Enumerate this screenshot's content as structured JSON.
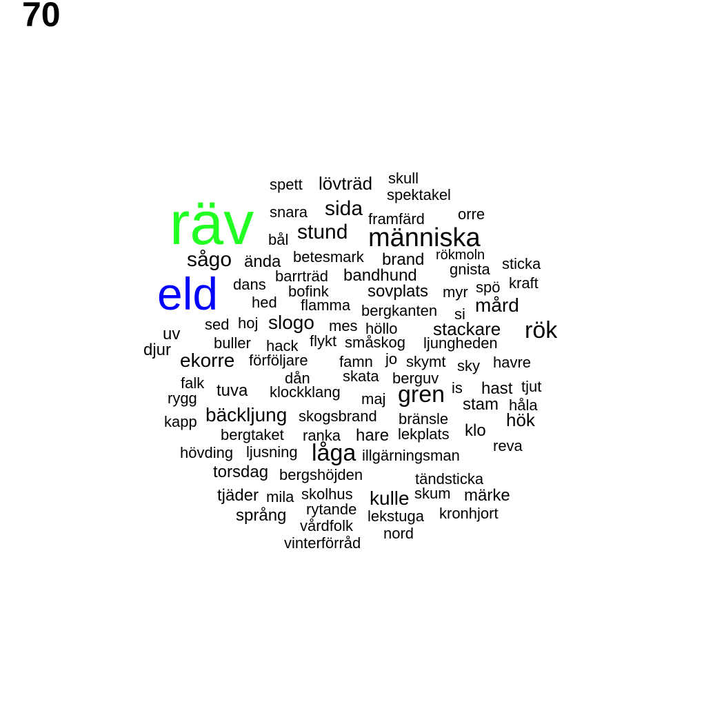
{
  "page_number": "70",
  "colors": {
    "default": "#000000",
    "rav": "#22ff22",
    "eld": "#0000ff"
  },
  "words": [
    {
      "text": "räv",
      "size": "xl",
      "color": "rav"
    },
    {
      "text": "eld",
      "size": "xl",
      "color": "eld"
    },
    {
      "text": "människa",
      "size": "l"
    },
    {
      "text": "rök",
      "size": "l"
    },
    {
      "text": "gren",
      "size": "l"
    },
    {
      "text": "låga",
      "size": "l"
    },
    {
      "text": "sågo",
      "size": "m"
    },
    {
      "text": "stund",
      "size": "m"
    },
    {
      "text": "sida",
      "size": "m"
    },
    {
      "text": "ekorre",
      "size": "m"
    },
    {
      "text": "bäckljung",
      "size": "m"
    },
    {
      "text": "slogo",
      "size": "m"
    },
    {
      "text": "mård",
      "size": "m"
    },
    {
      "text": "kulle",
      "size": "m"
    },
    {
      "text": "lövträd",
      "size": "s"
    },
    {
      "text": "spett",
      "size": "s"
    },
    {
      "text": "skull",
      "size": "s"
    },
    {
      "text": "spektakel",
      "size": "s"
    },
    {
      "text": "snara",
      "size": "s"
    },
    {
      "text": "framfärd",
      "size": "s"
    },
    {
      "text": "orre",
      "size": "s"
    },
    {
      "text": "bål",
      "size": "s"
    },
    {
      "text": "ända",
      "size": "s"
    },
    {
      "text": "betesmark",
      "size": "s"
    },
    {
      "text": "brand",
      "size": "s"
    },
    {
      "text": "rökmoln",
      "size": "s"
    },
    {
      "text": "sticka",
      "size": "s"
    },
    {
      "text": "gnista",
      "size": "s"
    },
    {
      "text": "barrträd",
      "size": "s"
    },
    {
      "text": "bandhund",
      "size": "s"
    },
    {
      "text": "dans",
      "size": "s"
    },
    {
      "text": "bofink",
      "size": "s"
    },
    {
      "text": "sovplats",
      "size": "s"
    },
    {
      "text": "myr",
      "size": "s"
    },
    {
      "text": "spö",
      "size": "s"
    },
    {
      "text": "kraft",
      "size": "s"
    },
    {
      "text": "hed",
      "size": "s"
    },
    {
      "text": "flamma",
      "size": "s"
    },
    {
      "text": "bergkanten",
      "size": "s"
    },
    {
      "text": "si",
      "size": "s"
    },
    {
      "text": "sed",
      "size": "s"
    },
    {
      "text": "hoj",
      "size": "s"
    },
    {
      "text": "mes",
      "size": "s"
    },
    {
      "text": "höllo",
      "size": "s"
    },
    {
      "text": "stackare",
      "size": "s"
    },
    {
      "text": "uv",
      "size": "s"
    },
    {
      "text": "buller",
      "size": "s"
    },
    {
      "text": "hack",
      "size": "s"
    },
    {
      "text": "flykt",
      "size": "s"
    },
    {
      "text": "småskog",
      "size": "s"
    },
    {
      "text": "ljungheden",
      "size": "s"
    },
    {
      "text": "djur",
      "size": "s"
    },
    {
      "text": "förföljare",
      "size": "s"
    },
    {
      "text": "famn",
      "size": "s"
    },
    {
      "text": "jo",
      "size": "s"
    },
    {
      "text": "skymt",
      "size": "s"
    },
    {
      "text": "sky",
      "size": "s"
    },
    {
      "text": "havre",
      "size": "s"
    },
    {
      "text": "dån",
      "size": "s"
    },
    {
      "text": "skata",
      "size": "s"
    },
    {
      "text": "berguv",
      "size": "s"
    },
    {
      "text": "falk",
      "size": "s"
    },
    {
      "text": "tuva",
      "size": "s"
    },
    {
      "text": "klockklang",
      "size": "s"
    },
    {
      "text": "maj",
      "size": "s"
    },
    {
      "text": "is",
      "size": "s"
    },
    {
      "text": "hast",
      "size": "s"
    },
    {
      "text": "tjut",
      "size": "s"
    },
    {
      "text": "rygg",
      "size": "s"
    },
    {
      "text": "stam",
      "size": "s"
    },
    {
      "text": "håla",
      "size": "s"
    },
    {
      "text": "skogsbrand",
      "size": "s"
    },
    {
      "text": "bränsle",
      "size": "s"
    },
    {
      "text": "hök",
      "size": "s"
    },
    {
      "text": "kapp",
      "size": "s"
    },
    {
      "text": "bergtaket",
      "size": "s"
    },
    {
      "text": "ranka",
      "size": "s"
    },
    {
      "text": "hare",
      "size": "s"
    },
    {
      "text": "lekplats",
      "size": "s"
    },
    {
      "text": "klo",
      "size": "s"
    },
    {
      "text": "hövding",
      "size": "s"
    },
    {
      "text": "ljusning",
      "size": "s"
    },
    {
      "text": "illgärningsman",
      "size": "s"
    },
    {
      "text": "reva",
      "size": "s"
    },
    {
      "text": "torsdag",
      "size": "s"
    },
    {
      "text": "bergshöjden",
      "size": "s"
    },
    {
      "text": "tändsticka",
      "size": "s"
    },
    {
      "text": "tjäder",
      "size": "s"
    },
    {
      "text": "mila",
      "size": "s"
    },
    {
      "text": "skolhus",
      "size": "s"
    },
    {
      "text": "skum",
      "size": "s"
    },
    {
      "text": "märke",
      "size": "s"
    },
    {
      "text": "rytande",
      "size": "s"
    },
    {
      "text": "språng",
      "size": "s"
    },
    {
      "text": "lekstuga",
      "size": "s"
    },
    {
      "text": "kronhjort",
      "size": "s"
    },
    {
      "text": "vårdfolk",
      "size": "s"
    },
    {
      "text": "nord",
      "size": "s"
    },
    {
      "text": "vinterförråd",
      "size": "s"
    }
  ]
}
